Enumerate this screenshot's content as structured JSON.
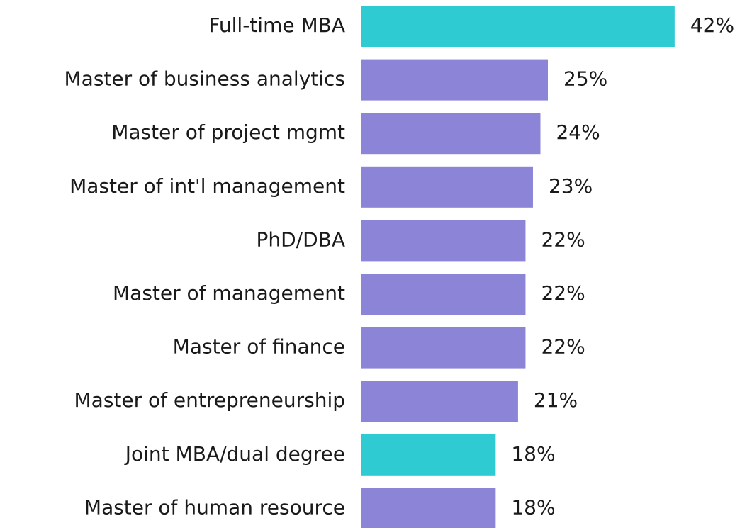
{
  "chart_data": {
    "type": "barh",
    "categories": [
      "Full-time MBA",
      "Master of business analytics",
      "Master of project mgmt",
      "Master of int'l management",
      "PhD/DBA",
      "Master of management",
      "Master of finance",
      "Master of entrepreneurship",
      "Joint MBA/dual degree",
      "Master of human resource"
    ],
    "values": [
      42,
      25,
      24,
      23,
      22,
      22,
      22,
      21,
      18,
      18
    ],
    "value_labels": [
      "42%",
      "25%",
      "24%",
      "23%",
      "22%",
      "22%",
      "22%",
      "21%",
      "18%",
      "18%"
    ],
    "colors": [
      "#2ecbd3",
      "#8b84d7",
      "#8b84d7",
      "#8b84d7",
      "#8b84d7",
      "#8b84d7",
      "#8b84d7",
      "#8b84d7",
      "#2ecbd3",
      "#8b84d7"
    ]
  }
}
